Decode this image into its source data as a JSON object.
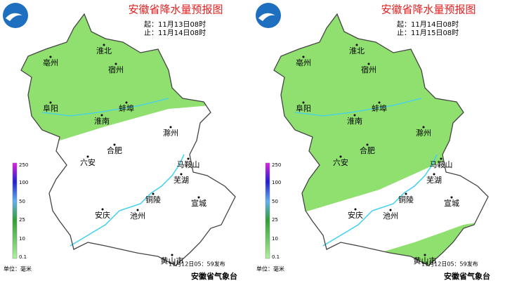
{
  "panels": [
    {
      "title": "安徽省降水量预报图",
      "start": "起：11月13日08时",
      "end": "止：11月14日08时",
      "cities": [
        "淮北",
        "亳州",
        "宿州",
        "阜阳",
        "蚌埠",
        "淮南",
        "滁州",
        "合肥",
        "六安",
        "马鞍山",
        "芜湖",
        "铜陵",
        "宣城",
        "安庆",
        "池州",
        "黄山市"
      ],
      "legend_ticks": [
        "250",
        "100",
        "50",
        "25",
        "10",
        "0.1"
      ],
      "unit": "单位：毫米",
      "published": "11月12日05：59发布",
      "agency": "安徽省气象台"
    },
    {
      "title": "安徽省降水量预报图",
      "start": "起：11月14日08时",
      "end": "止：11月15日08时",
      "cities": [
        "淮北",
        "亳州",
        "宿州",
        "阜阳",
        "蚌埠",
        "淮南",
        "滁州",
        "合肥",
        "六安",
        "马鞍山",
        "芜湖",
        "铜陵",
        "宣城",
        "安庆",
        "池州",
        "黄山市"
      ],
      "legend_ticks": [
        "250",
        "100",
        "50",
        "25",
        "10",
        "0.1"
      ],
      "unit": "单位：毫米",
      "published": "11月12日05：59发布",
      "agency": "安徽省气象台"
    }
  ]
}
